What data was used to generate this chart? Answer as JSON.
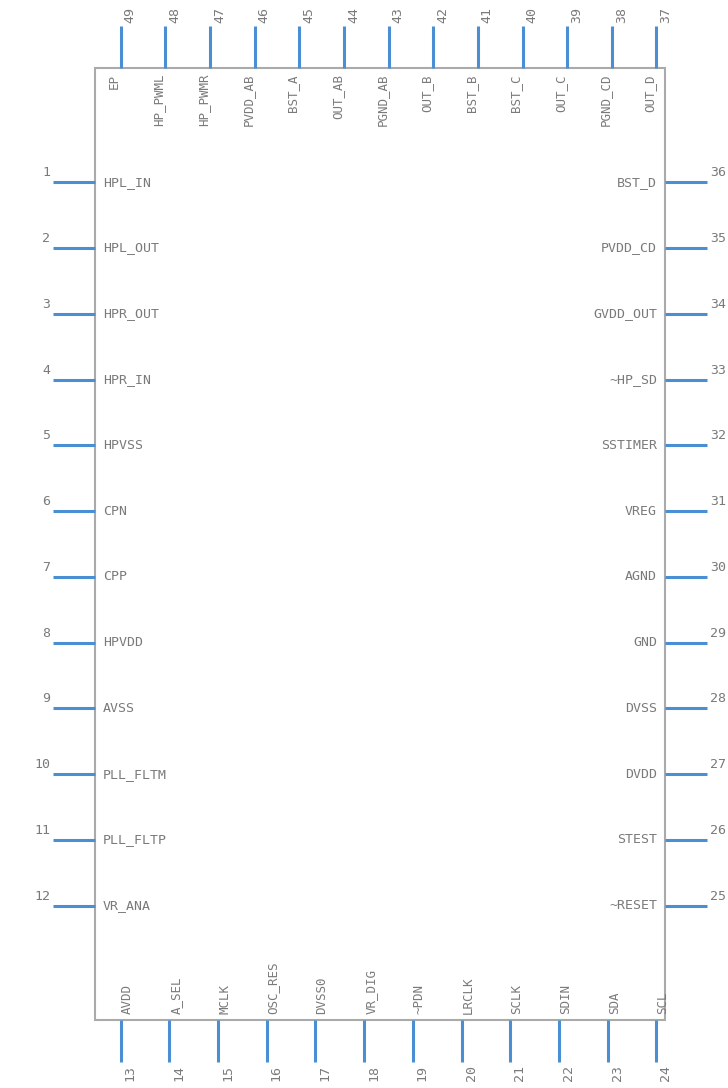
{
  "bg_color": "#ffffff",
  "box_color": "#aaaaaa",
  "pin_color": "#4a8fd4",
  "text_color": "#7a7a7a",
  "num_color": "#7a7a7a",
  "fig_w": 7.28,
  "fig_h": 10.88,
  "dpi": 100,
  "left_pins": [
    {
      "num": 1,
      "label": "HPL_IN"
    },
    {
      "num": 2,
      "label": "HPL_OUT"
    },
    {
      "num": 3,
      "label": "HPR_OUT"
    },
    {
      "num": 4,
      "label": "HPR_IN"
    },
    {
      "num": 5,
      "label": "HPVSS"
    },
    {
      "num": 6,
      "label": "CPN"
    },
    {
      "num": 7,
      "label": "CPP"
    },
    {
      "num": 8,
      "label": "HPVDD"
    },
    {
      "num": 9,
      "label": "AVSS"
    },
    {
      "num": 10,
      "label": "PLL_FLTM"
    },
    {
      "num": 11,
      "label": "PLL_FLTP"
    },
    {
      "num": 12,
      "label": "VR_ANA"
    }
  ],
  "right_pins": [
    {
      "num": 36,
      "label": "BST_D"
    },
    {
      "num": 35,
      "label": "PVDD_CD"
    },
    {
      "num": 34,
      "label": "GVDD_OUT"
    },
    {
      "num": 33,
      "label": "~HP_SD"
    },
    {
      "num": 32,
      "label": "SSTIMER"
    },
    {
      "num": 31,
      "label": "VREG"
    },
    {
      "num": 30,
      "label": "AGND"
    },
    {
      "num": 29,
      "label": "GND"
    },
    {
      "num": 28,
      "label": "DVSS"
    },
    {
      "num": 27,
      "label": "DVDD"
    },
    {
      "num": 26,
      "label": "STEST"
    },
    {
      "num": 25,
      "label": "~RESET"
    }
  ],
  "top_pins": [
    {
      "num": 49,
      "label": "EP"
    },
    {
      "num": 48,
      "label": "HP_PWML"
    },
    {
      "num": 47,
      "label": "HP_PWMR"
    },
    {
      "num": 46,
      "label": "PVDD_AB"
    },
    {
      "num": 45,
      "label": "BST_A"
    },
    {
      "num": 44,
      "label": "OUT_AB"
    },
    {
      "num": 43,
      "label": "PGND_AB"
    },
    {
      "num": 42,
      "label": "OUT_B"
    },
    {
      "num": 41,
      "label": "BST_B"
    },
    {
      "num": 40,
      "label": "BST_C"
    },
    {
      "num": 39,
      "label": "OUT_C"
    },
    {
      "num": 38,
      "label": "PGND_CD"
    },
    {
      "num": 37,
      "label": "OUT_D"
    }
  ],
  "bottom_pins": [
    {
      "num": 13,
      "label": "AVDD"
    },
    {
      "num": 14,
      "label": "A_SEL"
    },
    {
      "num": 15,
      "label": "MCLK"
    },
    {
      "num": 16,
      "label": "OSC_RES"
    },
    {
      "num": 17,
      "label": "DVSS0"
    },
    {
      "num": 18,
      "label": "VR_DIG"
    },
    {
      "num": 19,
      "label": "~PDN"
    },
    {
      "num": 20,
      "label": "LRCLK"
    },
    {
      "num": 21,
      "label": "SCLK"
    },
    {
      "num": 22,
      "label": "SDIN"
    },
    {
      "num": 23,
      "label": "SDA"
    },
    {
      "num": 24,
      "label": "SCL"
    }
  ]
}
